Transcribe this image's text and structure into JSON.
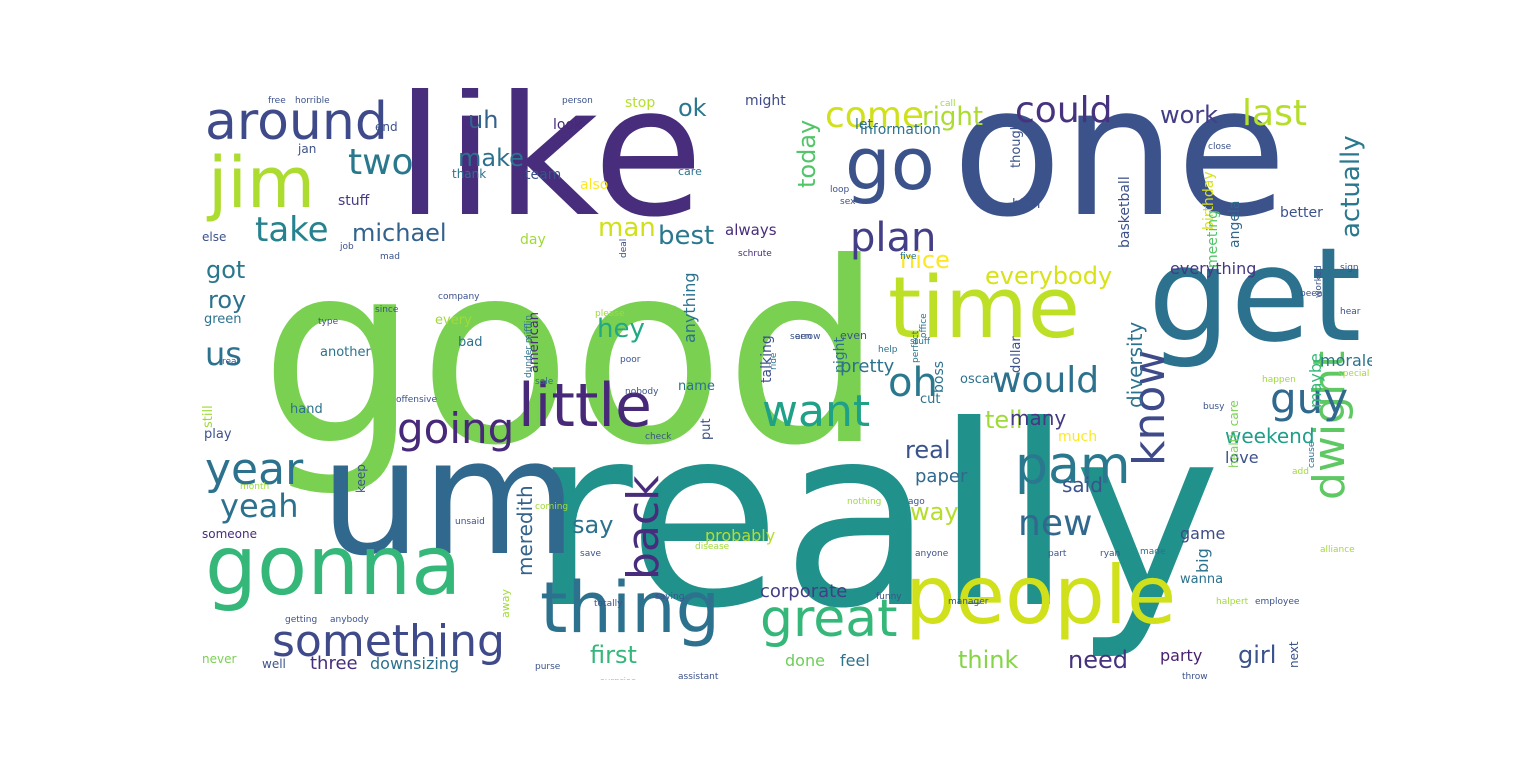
{
  "words": [
    {
      "text": "good",
      "color": "#7ad151"
    },
    {
      "text": "really",
      "color": "#21918c"
    },
    {
      "text": "like",
      "color": "#472d7b"
    },
    {
      "text": "one",
      "color": "#3b528b"
    },
    {
      "text": "um",
      "color": "#31688e"
    },
    {
      "text": "get",
      "color": "#2c728e"
    },
    {
      "text": "time",
      "color": "#bddf26"
    },
    {
      "text": "gonna",
      "color": "#35b779"
    },
    {
      "text": "people",
      "color": "#d0e11c"
    },
    {
      "text": "thing",
      "color": "#2c728e"
    },
    {
      "text": "jim",
      "color": "#addc30"
    },
    {
      "text": "go",
      "color": "#3b528b"
    },
    {
      "text": "little",
      "color": "#482878"
    },
    {
      "text": "around",
      "color": "#3e4a89"
    },
    {
      "text": "pam",
      "color": "#2a788e"
    },
    {
      "text": "great",
      "color": "#35b779"
    },
    {
      "text": "something",
      "color": "#3e4a89"
    },
    {
      "text": "dwight",
      "color": "#5ec962"
    },
    {
      "text": "know",
      "color": "#3e4a89"
    },
    {
      "text": "want",
      "color": "#1fa187"
    },
    {
      "text": "year",
      "color": "#2c728e"
    },
    {
      "text": "going",
      "color": "#482878"
    },
    {
      "text": "back",
      "color": "#472d7b"
    },
    {
      "text": "guy",
      "color": "#31688e"
    },
    {
      "text": "plan",
      "color": "#433e85"
    },
    {
      "text": "oh",
      "color": "#2a788e"
    },
    {
      "text": "would",
      "color": "#2c728e"
    },
    {
      "text": "two",
      "color": "#2a788e"
    },
    {
      "text": "come",
      "color": "#d0e11c"
    },
    {
      "text": "last",
      "color": "#b5de2b"
    },
    {
      "text": "could",
      "color": "#46327e"
    },
    {
      "text": "take",
      "color": "#26828e"
    },
    {
      "text": "new",
      "color": "#31688e"
    },
    {
      "text": "yeah",
      "color": "#2c728e"
    },
    {
      "text": "us",
      "color": "#2c728e"
    },
    {
      "text": "right",
      "color": "#addc30"
    },
    {
      "text": "actually",
      "color": "#2a788e"
    },
    {
      "text": "work",
      "color": "#433e85"
    },
    {
      "text": "michael",
      "color": "#33638d"
    },
    {
      "text": "best",
      "color": "#2a788e"
    },
    {
      "text": "hey",
      "color": "#22a884"
    },
    {
      "text": "man",
      "color": "#d0e11c"
    },
    {
      "text": "nice",
      "color": "#fde725"
    },
    {
      "text": "everybody",
      "color": "#d8e219"
    },
    {
      "text": "today",
      "color": "#52c569"
    },
    {
      "text": "roy",
      "color": "#2c728e"
    },
    {
      "text": "got",
      "color": "#2a788e"
    },
    {
      "text": "real",
      "color": "#3b528b"
    },
    {
      "text": "tell",
      "color": "#a0da39"
    },
    {
      "text": "many",
      "color": "#443983"
    },
    {
      "text": "weekend",
      "color": "#1f9e89"
    },
    {
      "text": "said",
      "color": "#3b528b"
    },
    {
      "text": "uh",
      "color": "#33638d"
    },
    {
      "text": "make",
      "color": "#2c728e"
    },
    {
      "text": "ok",
      "color": "#2a788e"
    },
    {
      "text": "girl",
      "color": "#3b528b"
    },
    {
      "text": "think",
      "color": "#86d549"
    },
    {
      "text": "first",
      "color": "#35b779"
    },
    {
      "text": "need",
      "color": "#46327e"
    },
    {
      "text": "meredith",
      "color": "#33638d"
    },
    {
      "text": "way",
      "color": "#b5de2b"
    },
    {
      "text": "say",
      "color": "#2c728e"
    },
    {
      "text": "corporate",
      "color": "#433e85"
    },
    {
      "text": "pretty",
      "color": "#2c728e"
    },
    {
      "text": "paper",
      "color": "#31688e"
    },
    {
      "text": "diversity",
      "color": "#2c728e"
    },
    {
      "text": "three",
      "color": "#472d7b"
    },
    {
      "text": "downsizing",
      "color": "#2c728e"
    },
    {
      "text": "everything",
      "color": "#443983"
    },
    {
      "text": "probably",
      "color": "#b5de2b"
    },
    {
      "text": "party",
      "color": "#481f70"
    },
    {
      "text": "anything",
      "color": "#2c728e"
    },
    {
      "text": "done",
      "color": "#6ece58"
    },
    {
      "text": "feel",
      "color": "#2c728e"
    },
    {
      "text": "big",
      "color": "#2c728e"
    },
    {
      "text": "game",
      "color": "#3e4a89"
    },
    {
      "text": "love",
      "color": "#3b528b"
    },
    {
      "text": "much",
      "color": "#fde725"
    },
    {
      "text": "maybe",
      "color": "#35b779"
    },
    {
      "text": "morale",
      "color": "#2c728e"
    },
    {
      "text": "birthday",
      "color": "#d8e219"
    },
    {
      "text": "basketball",
      "color": "#3b528b"
    },
    {
      "text": "angela",
      "color": "#31688e"
    },
    {
      "text": "meeting",
      "color": "#52c569"
    },
    {
      "text": "always",
      "color": "#472d7b"
    },
    {
      "text": "day",
      "color": "#a0da39"
    },
    {
      "text": "stuff",
      "color": "#443983"
    },
    {
      "text": "also",
      "color": "#fde725"
    },
    {
      "text": "team",
      "color": "#3b528b"
    },
    {
      "text": "look",
      "color": "#482878"
    },
    {
      "text": "thank",
      "color": "#2c728e"
    },
    {
      "text": "might",
      "color": "#3e4a89"
    },
    {
      "text": "stop",
      "color": "#b5de2b"
    },
    {
      "text": "let",
      "color": "#2c728e"
    },
    {
      "text": "information",
      "color": "#2c728e"
    },
    {
      "text": "better",
      "color": "#3b528b"
    },
    {
      "text": "high",
      "color": "#3b528b"
    },
    {
      "text": "though",
      "color": "#3b528b"
    },
    {
      "text": "boss",
      "color": "#2c728e"
    },
    {
      "text": "night",
      "color": "#2c728e"
    },
    {
      "text": "talking",
      "color": "#3b528b"
    },
    {
      "text": "american",
      "color": "#472d7b"
    },
    {
      "text": "every",
      "color": "#a0da39"
    },
    {
      "text": "bad",
      "color": "#2c728e"
    },
    {
      "text": "another",
      "color": "#2c728e"
    },
    {
      "text": "green",
      "color": "#2c728e"
    },
    {
      "text": "still",
      "color": "#a0da39"
    },
    {
      "text": "play",
      "color": "#3b528b"
    },
    {
      "text": "hand",
      "color": "#2c728e"
    },
    {
      "text": "name",
      "color": "#2c728e"
    },
    {
      "text": "oscar",
      "color": "#2c728e"
    },
    {
      "text": "cut",
      "color": "#2c728e"
    },
    {
      "text": "put",
      "color": "#3b528b"
    },
    {
      "text": "dollar",
      "color": "#3b528b"
    },
    {
      "text": "health care",
      "color": "#7ad151"
    },
    {
      "text": "wanna",
      "color": "#2c728e"
    },
    {
      "text": "next",
      "color": "#3b528b"
    },
    {
      "text": "else",
      "color": "#3b528b"
    },
    {
      "text": "end",
      "color": "#3b528b"
    },
    {
      "text": "jan",
      "color": "#3b528b"
    },
    {
      "text": "keep",
      "color": "#3b528b"
    },
    {
      "text": "someone",
      "color": "#472d7b"
    },
    {
      "text": "never",
      "color": "#7ad151"
    },
    {
      "text": "well",
      "color": "#3b528b"
    },
    {
      "text": "away",
      "color": "#a0da39"
    },
    {
      "text": "care",
      "color": "#2c728e"
    },
    {
      "text": "even",
      "color": "#3b528b"
    },
    {
      "text": "horrible",
      "color": "#3b528b"
    },
    {
      "text": "person",
      "color": "#3b528b"
    },
    {
      "text": "close",
      "color": "#3b528b"
    },
    {
      "text": "free",
      "color": "#3b528b"
    },
    {
      "text": "ride",
      "color": "#2c728e"
    },
    {
      "text": "help",
      "color": "#2c728e"
    },
    {
      "text": "stuff",
      "color": "#2c728e"
    },
    {
      "text": "seen",
      "color": "#3b528b"
    },
    {
      "text": "worked",
      "color": "#3b528b"
    },
    {
      "text": "sign",
      "color": "#3b528b"
    },
    {
      "text": "been",
      "color": "#3b528b"
    },
    {
      "text": "hear",
      "color": "#3b528b"
    },
    {
      "text": "special",
      "color": "#a0da39"
    },
    {
      "text": "happen",
      "color": "#a0da39"
    },
    {
      "text": "perfect",
      "color": "#2c728e"
    },
    {
      "text": "office",
      "color": "#2c728e"
    },
    {
      "text": "sale",
      "color": "#2c728e"
    },
    {
      "text": "please",
      "color": "#a0da39"
    },
    {
      "text": "company",
      "color": "#3b528b"
    },
    {
      "text": "offensive",
      "color": "#3b528b"
    },
    {
      "text": "nobody",
      "color": "#3b528b"
    },
    {
      "text": "busy",
      "color": "#3b528b"
    },
    {
      "text": "cause",
      "color": "#2c728e"
    },
    {
      "text": "dunder mifflin",
      "color": "#2c728e"
    },
    {
      "text": "nothing",
      "color": "#a0da39"
    },
    {
      "text": "ago",
      "color": "#3b528b"
    },
    {
      "text": "type",
      "color": "#3b528b"
    },
    {
      "text": "since",
      "color": "#3b528b"
    },
    {
      "text": "month",
      "color": "#a0da39"
    },
    {
      "text": "halpert",
      "color": "#a0da39"
    },
    {
      "text": "employee",
      "color": "#3b528b"
    },
    {
      "text": "manager",
      "color": "#3b528b"
    },
    {
      "text": "funny",
      "color": "#3b528b"
    },
    {
      "text": "saying",
      "color": "#3b528b"
    },
    {
      "text": "totally",
      "color": "#3b528b"
    },
    {
      "text": "purse",
      "color": "#3b528b"
    },
    {
      "text": "assistant",
      "color": "#3b528b"
    },
    {
      "text": "throw",
      "color": "#3b528b"
    },
    {
      "text": "alliance",
      "color": "#a0da39"
    },
    {
      "text": "getting",
      "color": "#3b528b"
    },
    {
      "text": "anybody",
      "color": "#3b528b"
    },
    {
      "text": "anyone",
      "color": "#3b528b"
    },
    {
      "text": "part",
      "color": "#3b528b"
    },
    {
      "text": "ryan",
      "color": "#3b528b"
    },
    {
      "text": "made",
      "color": "#2c728e"
    },
    {
      "text": "save",
      "color": "#3b528b"
    },
    {
      "text": "disease",
      "color": "#a0da39"
    },
    {
      "text": "surprise",
      "color": "#a0da39"
    },
    {
      "text": "coming",
      "color": "#a0da39"
    },
    {
      "text": "unsaid",
      "color": "#3b528b"
    },
    {
      "text": "check",
      "color": "#3b528b"
    },
    {
      "text": "job",
      "color": "#3b528b"
    },
    {
      "text": "schrute",
      "color": "#472d7b"
    },
    {
      "text": "deal",
      "color": "#3b528b"
    },
    {
      "text": "mad",
      "color": "#3b528b"
    },
    {
      "text": "five",
      "color": "#2c728e"
    },
    {
      "text": "poor",
      "color": "#3b528b"
    },
    {
      "text": "loop",
      "color": "#3b528b"
    },
    {
      "text": "sex",
      "color": "#3b528b"
    },
    {
      "text": "arrow",
      "color": "#3b528b"
    },
    {
      "text": "call",
      "color": "#a0da39"
    },
    {
      "text": "add",
      "color": "#a0da39"
    },
    {
      "text": "real",
      "color": "#3b528b"
    }
  ]
}
